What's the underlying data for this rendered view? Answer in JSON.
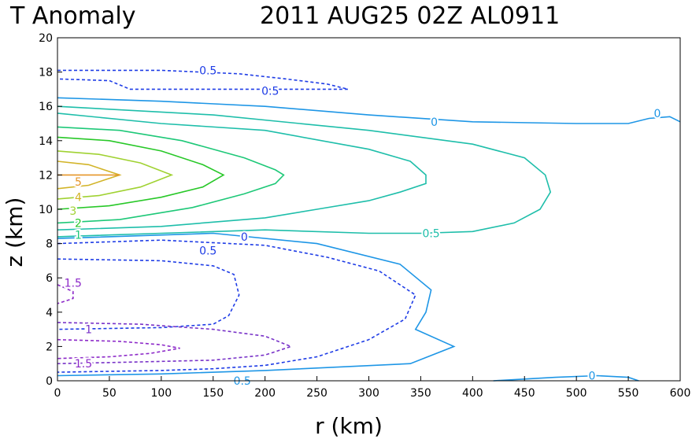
{
  "chart_data": {
    "type": "contour",
    "title_left": "T Anomaly",
    "title_right": "2011 AUG25 02Z   AL0911",
    "xlabel": "r (km)",
    "ylabel": "z (km)",
    "xlim": [
      0,
      600
    ],
    "ylim": [
      0,
      20
    ],
    "xticks": [
      "0",
      "50",
      "100",
      "150",
      "200",
      "250",
      "300",
      "350",
      "400",
      "450",
      "500",
      "550",
      "600"
    ],
    "yticks": [
      "0",
      "2",
      "4",
      "6",
      "8",
      "10",
      "12",
      "14",
      "16",
      "18",
      "20"
    ],
    "grid": false,
    "contours": [
      {
        "level": -0.5,
        "color": "#1e3ce6",
        "dashed": true,
        "points": [
          [
            0,
            18.1
          ],
          [
            100,
            18.1
          ],
          [
            175,
            17.9
          ],
          [
            220,
            17.6
          ],
          [
            260,
            17.3
          ],
          [
            280,
            17.0
          ],
          [
            240,
            17.0
          ],
          [
            200,
            17.0
          ],
          [
            150,
            17.0
          ],
          [
            100,
            17.0
          ],
          [
            70,
            17.0
          ],
          [
            50,
            17.5
          ],
          [
            0,
            17.6
          ]
        ]
      },
      {
        "level": 0,
        "color": "#1e96e6",
        "dashed": false,
        "points": [
          [
            0,
            16.5
          ],
          [
            100,
            16.3
          ],
          [
            200,
            16.0
          ],
          [
            300,
            15.5
          ],
          [
            400,
            15.1
          ],
          [
            500,
            15.0
          ],
          [
            550,
            15.0
          ],
          [
            570,
            15.3
          ],
          [
            590,
            15.4
          ],
          [
            600,
            15.1
          ]
        ]
      },
      {
        "level": 0.5,
        "color": "#1ebeaa",
        "dashed": false,
        "points": [
          [
            0,
            16.0
          ],
          [
            150,
            15.5
          ],
          [
            300,
            14.6
          ],
          [
            400,
            13.8
          ],
          [
            450,
            13.0
          ],
          [
            470,
            12.0
          ],
          [
            475,
            11.0
          ],
          [
            465,
            10.0
          ],
          [
            440,
            9.2
          ],
          [
            400,
            8.7
          ],
          [
            350,
            8.6
          ],
          [
            300,
            8.6
          ],
          [
            200,
            8.8
          ],
          [
            100,
            8.6
          ],
          [
            0,
            8.4
          ]
        ]
      },
      {
        "level": 0.5,
        "color": "#1ebeaa",
        "dashed": false,
        "points": [
          [
            0,
            15.6
          ],
          [
            100,
            15.0
          ],
          [
            200,
            14.6
          ],
          [
            300,
            13.5
          ],
          [
            340,
            12.8
          ],
          [
            355,
            12.0
          ],
          [
            355,
            11.5
          ],
          [
            330,
            11.0
          ],
          [
            300,
            10.5
          ],
          [
            250,
            10.0
          ],
          [
            200,
            9.5
          ],
          [
            100,
            9.0
          ],
          [
            0,
            8.8
          ]
        ]
      },
      {
        "level": 1,
        "color": "#1ec878",
        "dashed": false,
        "points": [
          [
            0,
            14.8
          ],
          [
            60,
            14.6
          ],
          [
            120,
            14.0
          ],
          [
            180,
            13.0
          ],
          [
            210,
            12.3
          ],
          [
            218,
            12.0
          ],
          [
            210,
            11.5
          ],
          [
            180,
            10.9
          ],
          [
            130,
            10.1
          ],
          [
            60,
            9.4
          ],
          [
            0,
            9.2
          ]
        ]
      },
      {
        "level": 2,
        "color": "#28c828",
        "dashed": false,
        "points": [
          [
            0,
            14.2
          ],
          [
            50,
            14.0
          ],
          [
            100,
            13.4
          ],
          [
            140,
            12.6
          ],
          [
            160,
            12.0
          ],
          [
            140,
            11.3
          ],
          [
            100,
            10.7
          ],
          [
            50,
            10.2
          ],
          [
            0,
            10.0
          ]
        ]
      },
      {
        "level": 3,
        "color": "#a0d232",
        "dashed": false,
        "points": [
          [
            0,
            13.4
          ],
          [
            40,
            13.2
          ],
          [
            80,
            12.7
          ],
          [
            110,
            12.0
          ],
          [
            80,
            11.3
          ],
          [
            40,
            10.8
          ],
          [
            0,
            10.6
          ]
        ]
      },
      {
        "level": 4,
        "color": "#d2b428",
        "dashed": false,
        "points": [
          [
            0,
            12.8
          ],
          [
            30,
            12.6
          ],
          [
            45,
            12.3
          ],
          [
            60,
            12.0
          ],
          [
            45,
            11.7
          ],
          [
            30,
            11.4
          ],
          [
            0,
            11.2
          ]
        ]
      },
      {
        "level": 5,
        "color": "#e69628",
        "dashed": false,
        "points": [
          [
            0,
            12.0
          ],
          [
            60,
            12.0
          ]
        ]
      },
      {
        "level": -0.5,
        "color": "#1e3ce6",
        "dashed": true,
        "points": [
          [
            0,
            8.0
          ],
          [
            100,
            8.2
          ],
          [
            200,
            7.9
          ],
          [
            260,
            7.2
          ],
          [
            310,
            6.4
          ],
          [
            345,
            5.0
          ],
          [
            335,
            3.6
          ],
          [
            300,
            2.4
          ],
          [
            250,
            1.4
          ],
          [
            200,
            0.9
          ],
          [
            150,
            0.7
          ],
          [
            100,
            0.6
          ],
          [
            0,
            0.5
          ]
        ]
      },
      {
        "level": 0,
        "color": "#1e96e6",
        "dashed": false,
        "points": [
          [
            0,
            8.3
          ],
          [
            150,
            8.6
          ],
          [
            250,
            8.0
          ],
          [
            330,
            6.8
          ],
          [
            360,
            5.3
          ],
          [
            355,
            4.0
          ],
          [
            345,
            3.0
          ],
          [
            382,
            2.0
          ],
          [
            340,
            1.0
          ],
          [
            200,
            0.6
          ],
          [
            100,
            0.4
          ],
          [
            0,
            0.3
          ]
        ]
      },
      {
        "level": -0.5,
        "color": "#1e3ce6",
        "dashed": true,
        "points": [
          [
            0,
            7.1
          ],
          [
            100,
            7.0
          ],
          [
            150,
            6.7
          ],
          [
            170,
            6.2
          ],
          [
            175,
            5.0
          ],
          [
            165,
            3.8
          ],
          [
            150,
            3.3
          ],
          [
            100,
            3.1
          ],
          [
            0,
            3.0
          ]
        ]
      },
      {
        "level": -1,
        "color": "#7832c8",
        "dashed": true,
        "points": [
          [
            0,
            3.4
          ],
          [
            80,
            3.3
          ],
          [
            150,
            3.0
          ],
          [
            200,
            2.6
          ],
          [
            225,
            2.0
          ],
          [
            200,
            1.5
          ],
          [
            150,
            1.2
          ],
          [
            80,
            1.1
          ],
          [
            0,
            1.0
          ]
        ]
      },
      {
        "level": -1.5,
        "color": "#8c28c8",
        "dashed": true,
        "points": [
          [
            0,
            2.4
          ],
          [
            60,
            2.3
          ],
          [
            100,
            2.1
          ],
          [
            118,
            1.9
          ],
          [
            90,
            1.6
          ],
          [
            50,
            1.4
          ],
          [
            0,
            1.3
          ]
        ]
      },
      {
        "level": -1.5,
        "color": "#8c28c8",
        "dashed": true,
        "points": [
          [
            0,
            5.6
          ],
          [
            15,
            5.2
          ],
          [
            15,
            4.8
          ],
          [
            0,
            4.5
          ]
        ]
      },
      {
        "level": 0,
        "color": "#1e96e6",
        "dashed": false,
        "points": [
          [
            420,
            0.0
          ],
          [
            480,
            0.2
          ],
          [
            520,
            0.3
          ],
          [
            550,
            0.2
          ],
          [
            560,
            0.0
          ]
        ]
      }
    ],
    "contour_labels": [
      {
        "text": "0.5",
        "x": 145,
        "y": 18.1,
        "color": "#1e3ce6"
      },
      {
        "text": "0.5",
        "x": 205,
        "y": 16.9,
        "color": "#1e3ce6"
      },
      {
        "text": "0",
        "x": 363,
        "y": 15.1,
        "color": "#1e96e6"
      },
      {
        "text": "0",
        "x": 578,
        "y": 15.6,
        "color": "#1e96e6"
      },
      {
        "text": "0.5",
        "x": 360,
        "y": 8.6,
        "color": "#1ebeaa"
      },
      {
        "text": "5",
        "x": 20,
        "y": 11.6,
        "color": "#e69628"
      },
      {
        "text": "4",
        "x": 20,
        "y": 10.7,
        "color": "#d2b428"
      },
      {
        "text": "3",
        "x": 15,
        "y": 9.9,
        "color": "#a0d232"
      },
      {
        "text": "2",
        "x": 20,
        "y": 9.2,
        "color": "#28c828"
      },
      {
        "text": "1",
        "x": 20,
        "y": 8.5,
        "color": "#1ec878"
      },
      {
        "text": "0",
        "x": 180,
        "y": 8.4,
        "color": "#1e3ce6"
      },
      {
        "text": "0.5",
        "x": 145,
        "y": 7.6,
        "color": "#1e3ce6"
      },
      {
        "text": "1.5",
        "x": 15,
        "y": 5.7,
        "color": "#8c28c8"
      },
      {
        "text": "1",
        "x": 30,
        "y": 3.0,
        "color": "#7832c8"
      },
      {
        "text": "1.5",
        "x": 25,
        "y": 1.0,
        "color": "#8c28c8"
      },
      {
        "text": "0.5",
        "x": 178,
        "y": 0.0,
        "color": "#1e96e6"
      },
      {
        "text": "0",
        "x": 515,
        "y": 0.3,
        "color": "#1e96e6"
      }
    ]
  }
}
